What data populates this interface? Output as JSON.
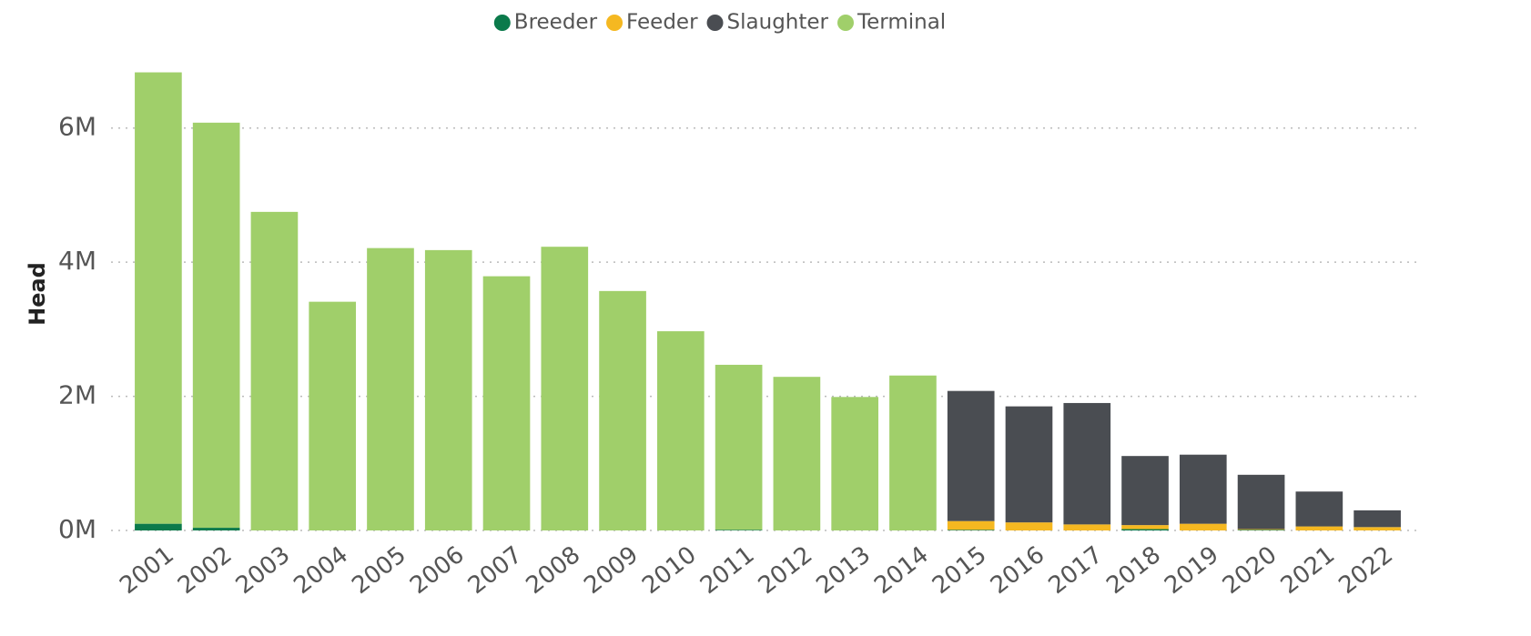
{
  "chart_data": {
    "type": "bar",
    "stacked": true,
    "y_label": "Head",
    "categories": [
      "2001",
      "2002",
      "2003",
      "2004",
      "2005",
      "2006",
      "2007",
      "2008",
      "2009",
      "2010",
      "2011",
      "2012",
      "2013",
      "2014",
      "2015",
      "2016",
      "2017",
      "2018",
      "2019",
      "2020",
      "2021",
      "2022"
    ],
    "series": [
      {
        "name": "Breeder",
        "color": "#0b7a4b",
        "values": [
          100000,
          40000,
          0,
          0,
          0,
          0,
          0,
          0,
          0,
          0,
          10000,
          0,
          0,
          0,
          10000,
          0,
          0,
          20000,
          0,
          10000,
          0,
          0
        ]
      },
      {
        "name": "Feeder",
        "color": "#f5b821",
        "values": [
          0,
          0,
          0,
          0,
          0,
          0,
          0,
          0,
          0,
          0,
          0,
          0,
          0,
          0,
          130000,
          120000,
          90000,
          60000,
          100000,
          10000,
          60000,
          50000
        ]
      },
      {
        "name": "Slaughter",
        "color": "#4a4d52",
        "values": [
          0,
          0,
          0,
          0,
          0,
          0,
          0,
          0,
          0,
          0,
          0,
          0,
          0,
          0,
          1940000,
          1730000,
          1810000,
          1030000,
          1030000,
          810000,
          520000,
          250000
        ]
      },
      {
        "name": "Terminal",
        "color": "#a0cf6a",
        "values": [
          6730000,
          6040000,
          4750000,
          3410000,
          4210000,
          4180000,
          3790000,
          4230000,
          3570000,
          2970000,
          2460000,
          2290000,
          1990000,
          2310000,
          0,
          0,
          0,
          0,
          0,
          0,
          0,
          0
        ]
      }
    ],
    "ylim": [
      0,
      7000000
    ],
    "yticks": [
      {
        "value": 0,
        "label": "0M"
      },
      {
        "value": 2000000,
        "label": "2M"
      },
      {
        "value": 4000000,
        "label": "4M"
      },
      {
        "value": 6000000,
        "label": "6M"
      }
    ],
    "grid": true,
    "legend": "top"
  }
}
